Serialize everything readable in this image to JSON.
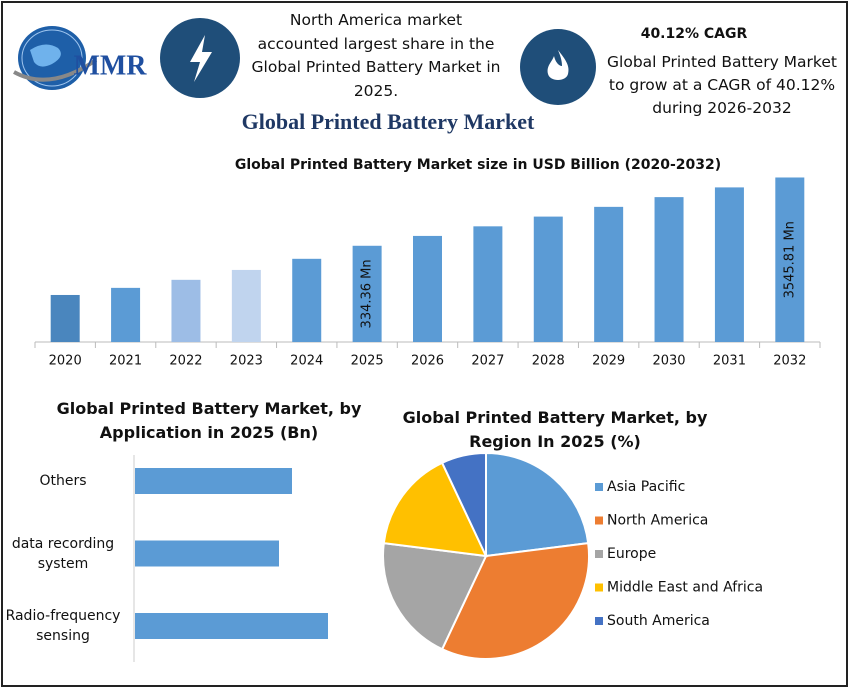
{
  "header": {
    "logo": "MMR",
    "highlight_1": "North America market accounted largest share in the Global Printed Battery Market in 2025.",
    "highlight_2_title": "40.12% CAGR",
    "highlight_2": "Global Printed Battery Market to grow at a CAGR of 40.12% during 2026-2032",
    "title": "Global Printed Battery Market"
  },
  "chart_data": [
    {
      "type": "bar",
      "title": "Global Printed Battery Market size in USD Billion (2020-2032)",
      "categories": [
        "2020",
        "2021",
        "2022",
        "2023",
        "2024",
        "2025",
        "2026",
        "2027",
        "2028",
        "2029",
        "2030",
        "2031",
        "2032"
      ],
      "values": [
        61,
        78,
        103,
        145,
        213,
        334.36,
        470,
        655,
        917,
        1284,
        1798,
        2517,
        3545.81
      ],
      "value_labels": [
        null,
        null,
        null,
        null,
        null,
        "334.36 Mn",
        null,
        null,
        null,
        null,
        null,
        null,
        "3545.81 Mn"
      ],
      "colors": [
        "#4a86be",
        "#5b9bd5",
        "#9dbde6",
        "#c0d4ee",
        "#5b9bd5",
        "#5b9bd5",
        "#5b9bd5",
        "#5b9bd5",
        "#5b9bd5",
        "#5b9bd5",
        "#5b9bd5",
        "#5b9bd5",
        "#5b9bd5"
      ],
      "log_scale": true,
      "ylim": [
        12,
        4000
      ]
    },
    {
      "type": "bar",
      "horizontal": true,
      "title": "Global Printed Battery Market, by Application in 2025 (Bn)",
      "categories": [
        "Others",
        "data recording system",
        "Radio-frequency sensing"
      ],
      "values": [
        1.57,
        1.44,
        1.93
      ],
      "color": "#5b9bd5",
      "xlim": [
        0,
        2.2
      ]
    },
    {
      "type": "pie",
      "title": "Global Printed Battery Market, by Region In 2025 (%)",
      "categories": [
        "Asia Pacific",
        "North America",
        "Europe",
        "Middle East and Africa",
        "South America"
      ],
      "values": [
        23,
        34,
        20,
        16,
        7
      ],
      "colors": [
        "#5b9bd5",
        "#ed7d31",
        "#a5a5a5",
        "#ffc000",
        "#4472c4"
      ]
    }
  ]
}
